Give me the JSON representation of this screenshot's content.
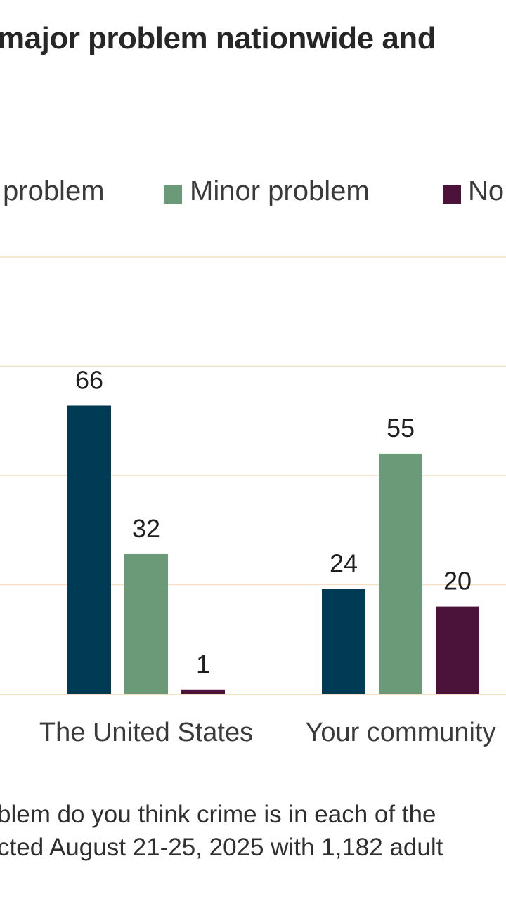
{
  "header": {
    "title": "major problem nationwide and"
  },
  "legend": {
    "items": [
      {
        "label": "problem",
        "color": "#003b55"
      },
      {
        "label": "Minor problem",
        "color": "#6a9a78"
      },
      {
        "label": "No",
        "color": "#4b1339"
      }
    ]
  },
  "chart_data": {
    "type": "bar",
    "categories": [
      "The United States",
      "Your community"
    ],
    "series": [
      {
        "name": "problem",
        "values": [
          66,
          24
        ],
        "color": "#003b55"
      },
      {
        "name": "Minor problem",
        "values": [
          32,
          55
        ],
        "color": "#6a9a78"
      },
      {
        "name": "No",
        "values": [
          1,
          20
        ],
        "color": "#4b1339"
      }
    ],
    "ylim": [
      0,
      100
    ],
    "yticks": [
      0,
      25,
      50,
      75,
      100
    ],
    "grid": true,
    "gridline_color": "#f3dfc4",
    "legend_position": "top"
  },
  "footer": {
    "line1": "blem do you think crime is in each of the",
    "line2": "cted August 21-25, 2025 with 1,182 adult"
  }
}
